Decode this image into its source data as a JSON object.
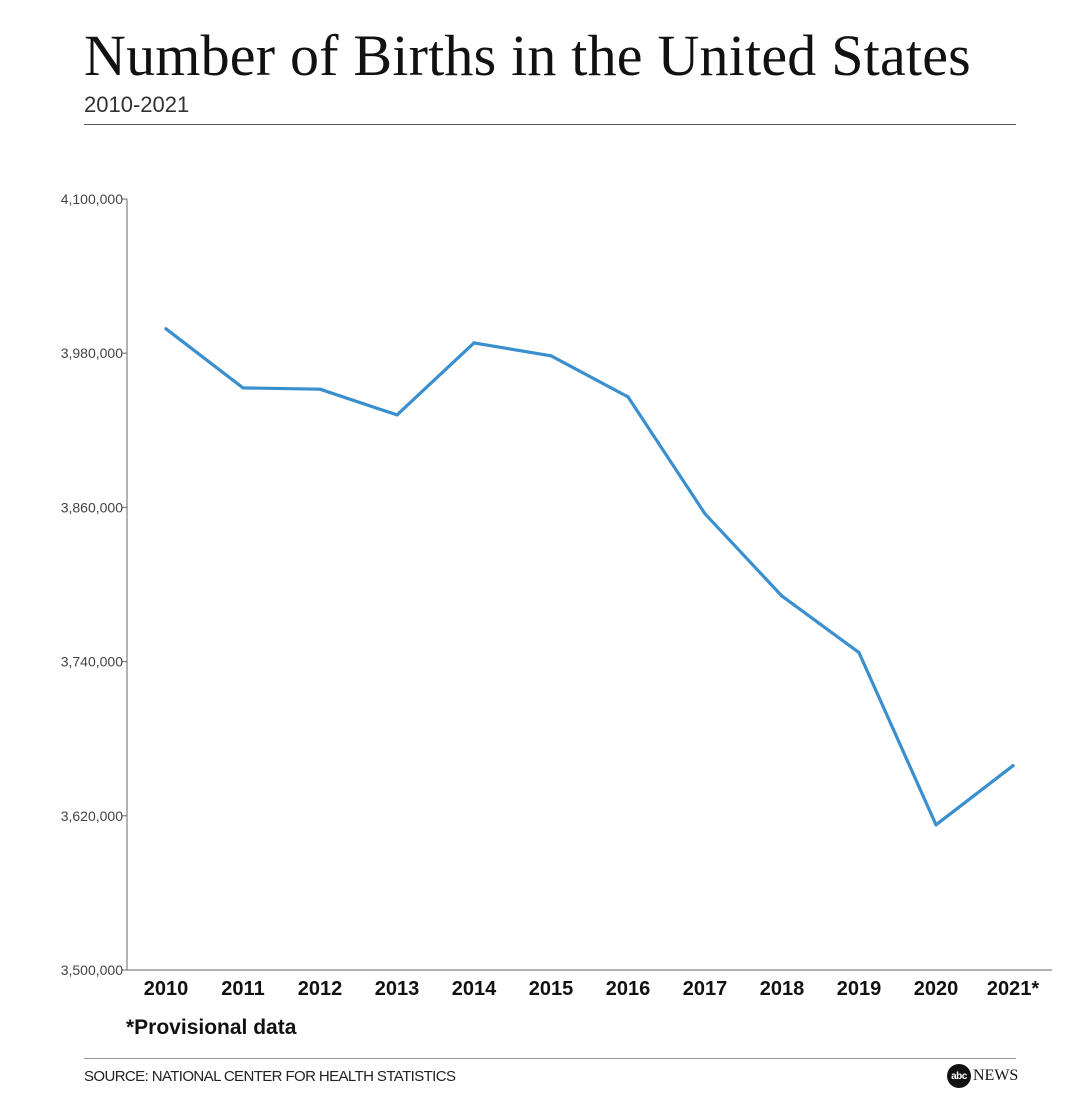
{
  "header": {
    "title": "Number of Births in the United States",
    "subtitle": "2010-2021"
  },
  "footnote": "*Provisional data",
  "source": "SOURCE: NATIONAL CENTER FOR HEALTH STATISTICS",
  "logo": {
    "mark": "abc",
    "text": "NEWS"
  },
  "colors": {
    "line": "#3a8fcf",
    "axis": "#666666",
    "text": "#111111"
  },
  "chart_data": {
    "type": "line",
    "title": "Number of Births in the United States",
    "subtitle": "2010-2021",
    "x": [
      "2010",
      "2011",
      "2012",
      "2013",
      "2014",
      "2015",
      "2016",
      "2017",
      "2018",
      "2019",
      "2020",
      "2021*"
    ],
    "values": [
      3999000,
      3953000,
      3952000,
      3932000,
      3988000,
      3978000,
      3946000,
      3855000,
      3791000,
      3747000,
      3613000,
      3659000
    ],
    "yticks": [
      "4,100,000",
      "3,980,000",
      "3,860,000",
      "3,740,000",
      "3,620,000",
      "3,500,000"
    ],
    "ytick_values": [
      4100000,
      3980000,
      3860000,
      3740000,
      3620000,
      3500000
    ],
    "ylim": [
      3500000,
      4100000
    ],
    "grid": false,
    "legend": "none"
  }
}
